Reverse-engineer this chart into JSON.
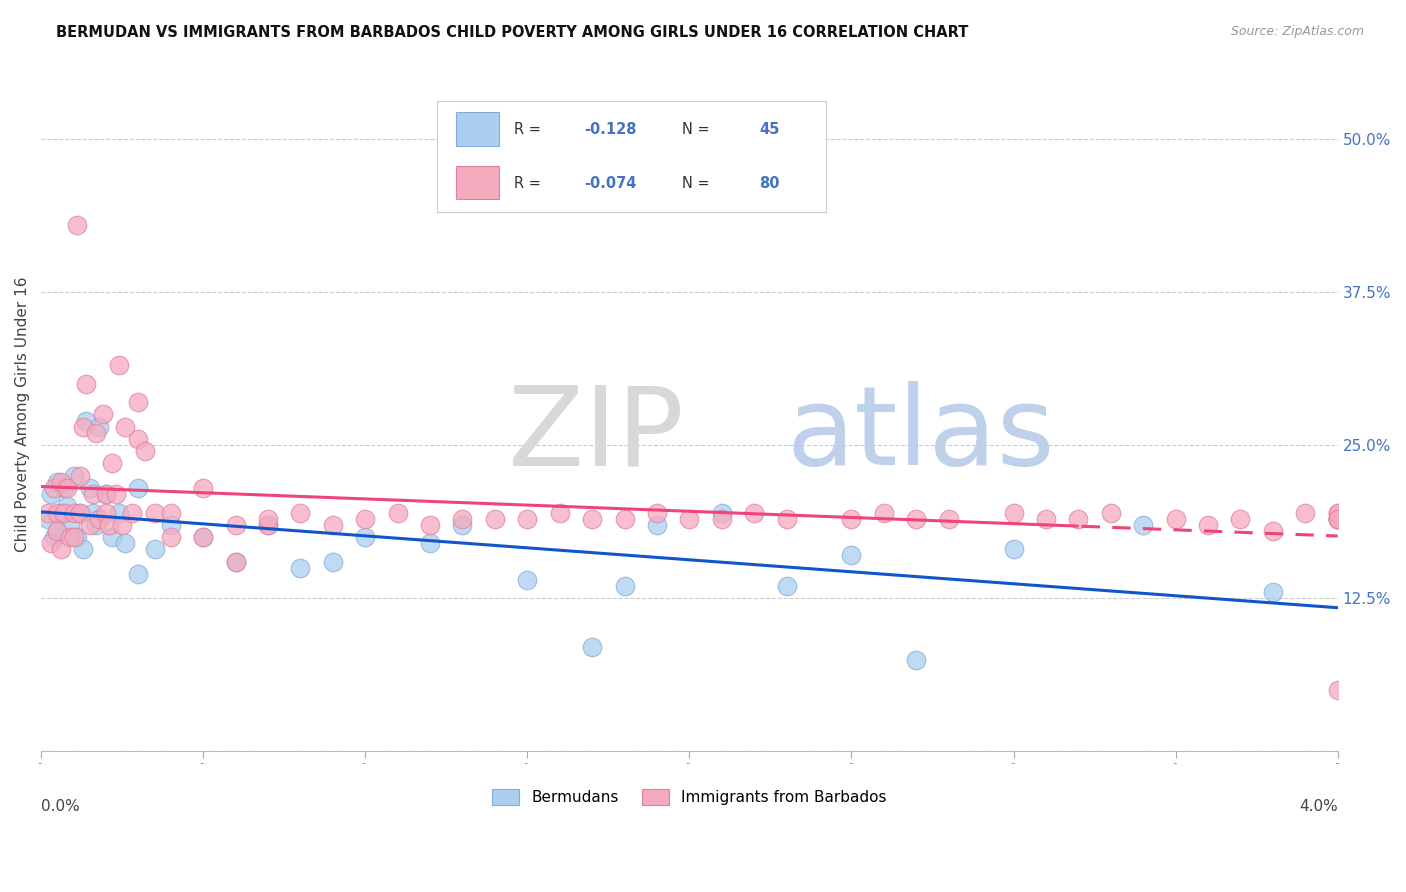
{
  "title": "BERMUDAN VS IMMIGRANTS FROM BARBADOS CHILD POVERTY AMONG GIRLS UNDER 16 CORRELATION CHART",
  "source": "Source: ZipAtlas.com",
  "ylabel": "Child Poverty Among Girls Under 16",
  "xlim": [
    0.0,
    0.04
  ],
  "ylim": [
    0.0,
    0.55
  ],
  "right_ytick_vals": [
    0.125,
    0.25,
    0.375,
    0.5
  ],
  "right_ytick_labels": [
    "12.5%",
    "25.0%",
    "37.5%",
    "50.0%"
  ],
  "grid_yvals": [
    0.0,
    0.125,
    0.25,
    0.375,
    0.5
  ],
  "blue_color": "#aacfef",
  "blue_edge_color": "#88aad8",
  "pink_color": "#f5aabe",
  "pink_edge_color": "#e080a0",
  "blue_line_color": "#1155cc",
  "pink_line_color": "#ee4477",
  "blue_n": 45,
  "pink_n": 80,
  "legend_label_blue": "Bermudans",
  "legend_label_pink": "Immigrants from Barbados",
  "blue_points_x": [
    0.0002,
    0.0003,
    0.0004,
    0.0005,
    0.0005,
    0.0006,
    0.0007,
    0.0008,
    0.0009,
    0.001,
    0.0011,
    0.0012,
    0.0013,
    0.0014,
    0.0015,
    0.0016,
    0.0017,
    0.0018,
    0.002,
    0.0022,
    0.0024,
    0.0026,
    0.003,
    0.003,
    0.0035,
    0.004,
    0.005,
    0.006,
    0.007,
    0.008,
    0.009,
    0.01,
    0.012,
    0.013,
    0.015,
    0.017,
    0.018,
    0.019,
    0.021,
    0.023,
    0.025,
    0.027,
    0.03,
    0.034,
    0.038
  ],
  "blue_points_y": [
    0.19,
    0.21,
    0.175,
    0.22,
    0.18,
    0.195,
    0.215,
    0.2,
    0.185,
    0.225,
    0.175,
    0.195,
    0.165,
    0.27,
    0.215,
    0.195,
    0.185,
    0.265,
    0.21,
    0.175,
    0.195,
    0.17,
    0.215,
    0.145,
    0.165,
    0.185,
    0.175,
    0.155,
    0.185,
    0.15,
    0.155,
    0.175,
    0.17,
    0.185,
    0.14,
    0.085,
    0.135,
    0.185,
    0.195,
    0.135,
    0.16,
    0.075,
    0.165,
    0.185,
    0.13
  ],
  "pink_points_x": [
    0.0002,
    0.0003,
    0.0004,
    0.0005,
    0.0005,
    0.0006,
    0.0006,
    0.0007,
    0.0008,
    0.0009,
    0.001,
    0.001,
    0.0011,
    0.0012,
    0.0012,
    0.0013,
    0.0014,
    0.0015,
    0.0016,
    0.0017,
    0.0018,
    0.0019,
    0.002,
    0.002,
    0.0021,
    0.0022,
    0.0023,
    0.0024,
    0.0025,
    0.0026,
    0.0028,
    0.003,
    0.003,
    0.0032,
    0.0035,
    0.004,
    0.004,
    0.005,
    0.005,
    0.006,
    0.006,
    0.007,
    0.007,
    0.008,
    0.009,
    0.01,
    0.011,
    0.012,
    0.013,
    0.014,
    0.015,
    0.016,
    0.017,
    0.018,
    0.019,
    0.02,
    0.021,
    0.022,
    0.023,
    0.025,
    0.026,
    0.027,
    0.028,
    0.03,
    0.031,
    0.032,
    0.033,
    0.035,
    0.036,
    0.037,
    0.038,
    0.039,
    0.04,
    0.04,
    0.04,
    0.04,
    0.04,
    0.04,
    0.04,
    0.04
  ],
  "pink_points_y": [
    0.195,
    0.17,
    0.215,
    0.195,
    0.18,
    0.22,
    0.165,
    0.195,
    0.215,
    0.175,
    0.195,
    0.175,
    0.43,
    0.225,
    0.195,
    0.265,
    0.3,
    0.185,
    0.21,
    0.26,
    0.19,
    0.275,
    0.195,
    0.21,
    0.185,
    0.235,
    0.21,
    0.315,
    0.185,
    0.265,
    0.195,
    0.285,
    0.255,
    0.245,
    0.195,
    0.195,
    0.175,
    0.215,
    0.175,
    0.185,
    0.155,
    0.185,
    0.19,
    0.195,
    0.185,
    0.19,
    0.195,
    0.185,
    0.19,
    0.19,
    0.19,
    0.195,
    0.19,
    0.19,
    0.195,
    0.19,
    0.19,
    0.195,
    0.19,
    0.19,
    0.195,
    0.19,
    0.19,
    0.195,
    0.19,
    0.19,
    0.195,
    0.19,
    0.185,
    0.19,
    0.18,
    0.195,
    0.19,
    0.19,
    0.195,
    0.19,
    0.19,
    0.195,
    0.19,
    0.05
  ]
}
